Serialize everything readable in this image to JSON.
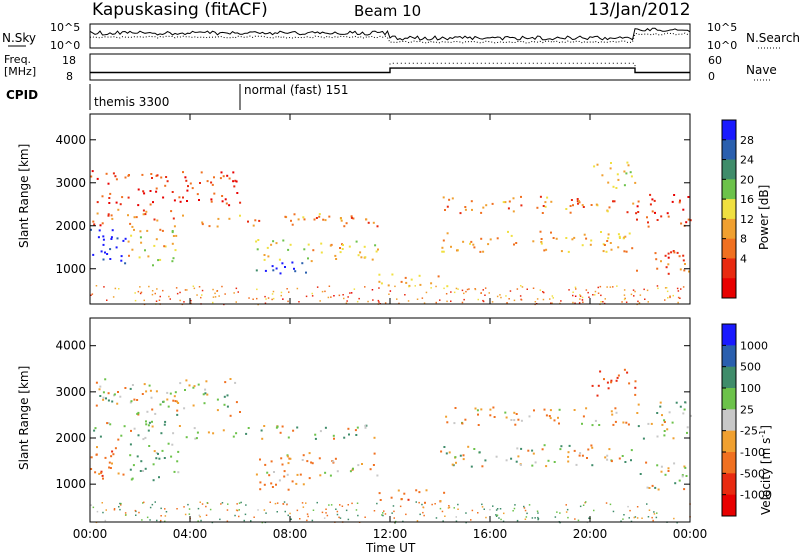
{
  "header": {
    "title": "Kapuskasing (fitACF)",
    "beam": "Beam 10",
    "date": "13/Jan/2012"
  },
  "strip": {
    "nsky_label": "N.Sky",
    "nsky_ticks": [
      "10^5",
      "10^0"
    ],
    "nsearch_label": "N.Search",
    "nsearch_ticks": [
      "10^5",
      "10^0"
    ],
    "freq_label_1": "Freq.",
    "freq_label_2": "[MHz]",
    "freq_ticks": [
      "18",
      "8"
    ],
    "nave_label": "Nave",
    "nave_ticks": [
      "60",
      "0"
    ],
    "cpid_label": "CPID",
    "cpid_1": "themis 3300",
    "cpid_2": "normal (fast) 151"
  },
  "power_panel": {
    "ylabel": "Slant Range [km]",
    "yticks": [
      "4000",
      "3000",
      "2000",
      "1000"
    ],
    "colorbar_label": "Power [dB]",
    "colorbar_ticks": [
      "28",
      "24",
      "20",
      "16",
      "12",
      "8",
      "4"
    ],
    "colors": [
      "#1a1aff",
      "#2a5fae",
      "#3f8c6a",
      "#6cc24a",
      "#f0e040",
      "#f0a030",
      "#f07020",
      "#e82a10",
      "#e80000"
    ]
  },
  "velocity_panel": {
    "ylabel": "Slant Range [km]",
    "yticks": [
      "4000",
      "3000",
      "2000",
      "1000"
    ],
    "colorbar_label": "Velocity [m s",
    "colorbar_sup": "-1",
    "colorbar_close": "]",
    "colorbar_ticks": [
      "1000",
      "500",
      "100",
      "25",
      "-25",
      "-100",
      "-500",
      "-1000"
    ],
    "colors": [
      "#1a1aff",
      "#2a5fae",
      "#3f8c6a",
      "#6cc24a",
      "#c8c8c8",
      "#f0a030",
      "#f07020",
      "#e82a10",
      "#e80000"
    ],
    "ground_scatter_color": "#c8c8c8"
  },
  "x_axis": {
    "ticks": [
      "00:00",
      "04:00",
      "08:00",
      "12:00",
      "16:00",
      "20:00",
      "00:00"
    ],
    "label": "Time UT"
  },
  "chart_data": {
    "type": "heatmap",
    "x_range_hours": [
      0,
      24
    ],
    "y_range_km": [
      180,
      4600
    ],
    "power_range_db": [
      0,
      30
    ],
    "velocity_range_ms": [
      -1000,
      1000
    ],
    "scatter_bands": [
      {
        "t": [
          0,
          1.5
        ],
        "r": [
          1100,
          2000
        ],
        "power": 28,
        "velocity": -200
      },
      {
        "t": [
          1.5,
          3.5
        ],
        "r": [
          1100,
          2000
        ],
        "power": 14,
        "velocity": 100
      },
      {
        "t": [
          0,
          3.5
        ],
        "r": [
          2000,
          2400
        ],
        "power": 8,
        "velocity": 0
      },
      {
        "t": [
          0,
          6
        ],
        "r": [
          2500,
          3300
        ],
        "power": 5,
        "velocity": 0
      },
      {
        "t": [
          3.5,
          11.5
        ],
        "r": [
          2000,
          2300
        ],
        "power": 10,
        "velocity": 0
      },
      {
        "t": [
          6.5,
          9
        ],
        "r": [
          900,
          1200
        ],
        "power": 28,
        "velocity": -150
      },
      {
        "t": [
          6.5,
          11.5
        ],
        "r": [
          1200,
          1700
        ],
        "power": 14,
        "velocity": -100
      },
      {
        "t": [
          11.5,
          14.5
        ],
        "r": [
          600,
          900
        ],
        "power": 12,
        "velocity": -200
      },
      {
        "t": [
          14,
          21.8
        ],
        "r": [
          1400,
          1900
        ],
        "power": 12,
        "velocity": 0
      },
      {
        "t": [
          14,
          21.8
        ],
        "r": [
          2300,
          2700
        ],
        "power": 9,
        "velocity": -100
      },
      {
        "t": [
          20,
          21.8
        ],
        "r": [
          2900,
          3500
        ],
        "power": 14,
        "velocity": -300
      },
      {
        "t": [
          21.8,
          24
        ],
        "r": [
          900,
          1500
        ],
        "power": 8,
        "velocity": 0
      },
      {
        "t": [
          21.8,
          24
        ],
        "r": [
          2000,
          2800
        ],
        "power": 5,
        "velocity": 0
      }
    ],
    "cpid_segments": [
      {
        "t": [
          0,
          6
        ],
        "name": "themis 3300"
      },
      {
        "t": [
          6,
          24
        ],
        "name": "normal (fast) 151"
      }
    ],
    "frequency_mhz": [
      {
        "t": [
          0,
          12
        ],
        "value": 10.5
      },
      {
        "t": [
          12,
          21.8
        ],
        "value": 12.5
      },
      {
        "t": [
          21.8,
          24
        ],
        "value": 10.5
      }
    ],
    "nave": [
      {
        "t": [
          0,
          12
        ],
        "value": 15
      },
      {
        "t": [
          12,
          21.8
        ],
        "value": 40
      },
      {
        "t": [
          21.8,
          24
        ],
        "value": 15
      }
    ]
  }
}
